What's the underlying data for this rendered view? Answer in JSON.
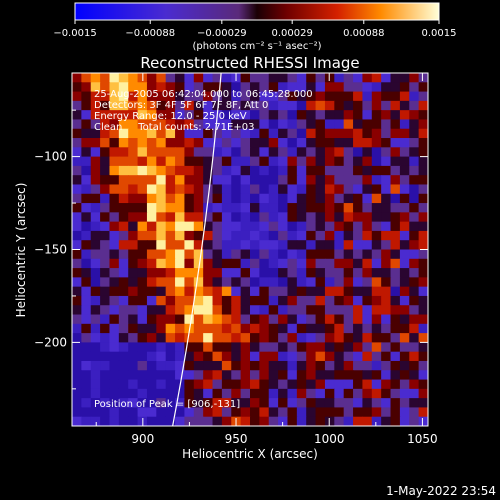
{
  "chart_data": {
    "type": "heatmap",
    "title": "Reconstructed RHESSI Image",
    "xlabel": "Heliocentric X (arcsec)",
    "ylabel": "Heliocentric Y (arcsec)",
    "xlim": [
      862,
      1053
    ],
    "ylim": [
      -245,
      -55
    ],
    "x_ticks": [
      "900",
      "950",
      "1000",
      "1050"
    ],
    "x_tick_values": [
      900,
      950,
      1000,
      1050
    ],
    "y_ticks": [
      "−100",
      "−150",
      "−200"
    ],
    "y_tick_values": [
      -100,
      -150,
      -200
    ],
    "colorbar": {
      "range": [
        -0.0015,
        0.0015
      ],
      "tick_labels": [
        "−0.0015",
        "−0.00088",
        "−0.00029",
        "0.00029",
        "0.00088",
        "0.0015"
      ],
      "tick_values": [
        -0.0015,
        -0.00088,
        -0.00029,
        0.00029,
        0.00088,
        0.0015
      ],
      "units_label": "(photons cm⁻² s⁻¹ asec⁻²)"
    },
    "annotations": [
      "25-Aug-2005 06:42:04.000 to 06:45:28.000",
      "Detectors: 3F 4F 5F 6F 7F 8F, Att 0",
      "Energy Range: 12.0 - 25.0 keV",
      "Clean     Total counts: 2.71E+03"
    ],
    "peak_label": "Position of Peak = [906,-131]",
    "peak": [
      906,
      -131
    ],
    "grid": false
  },
  "footer": {
    "date": "1-May-2022 23:54"
  },
  "colors": {
    "background": "#000000",
    "foreground": "#ffffff",
    "limb": "#ffffff"
  }
}
